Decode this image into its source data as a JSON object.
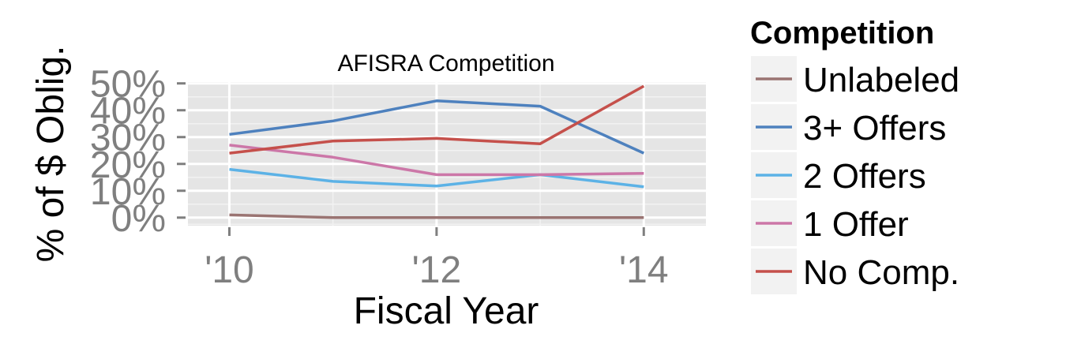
{
  "chart_data": {
    "type": "line",
    "title": "AFISRA Competition",
    "xlabel": "Fiscal Year",
    "ylabel": "% of $ Oblig.",
    "x": [
      2010,
      2011,
      2012,
      2013,
      2014
    ],
    "xlim": [
      2009.6,
      2014.6
    ],
    "ylim": [
      -0.03,
      0.505
    ],
    "x_ticks": [
      {
        "value": 2010,
        "label": "'10"
      },
      {
        "value": 2012,
        "label": "'12"
      },
      {
        "value": 2014,
        "label": "'14"
      }
    ],
    "y_ticks": [
      {
        "value": 0,
        "label": "0%"
      },
      {
        "value": 0.1,
        "label": "10%"
      },
      {
        "value": 0.2,
        "label": "20%"
      },
      {
        "value": 0.3,
        "label": "30%"
      },
      {
        "value": 0.4,
        "label": "40%"
      },
      {
        "value": 0.5,
        "label": "50%"
      }
    ],
    "grid": true,
    "legend_title": "Competition",
    "legend_position": "right",
    "series": [
      {
        "name": "Unlabeled",
        "color": "#9A7472",
        "values": [
          0.01,
          0.0,
          0.0,
          0.0,
          0.0
        ]
      },
      {
        "name": "3+ Offers",
        "color": "#4E81BE",
        "values": [
          0.31,
          0.36,
          0.435,
          0.415,
          0.24
        ]
      },
      {
        "name": "2 Offers",
        "color": "#5CB2E6",
        "values": [
          0.18,
          0.135,
          0.118,
          0.16,
          0.115
        ]
      },
      {
        "name": "1 Offer",
        "color": "#CC77A8",
        "values": [
          0.27,
          0.225,
          0.16,
          0.16,
          0.165
        ]
      },
      {
        "name": "No Comp.",
        "color": "#C5504B",
        "values": [
          0.24,
          0.285,
          0.295,
          0.275,
          0.49
        ]
      }
    ]
  }
}
